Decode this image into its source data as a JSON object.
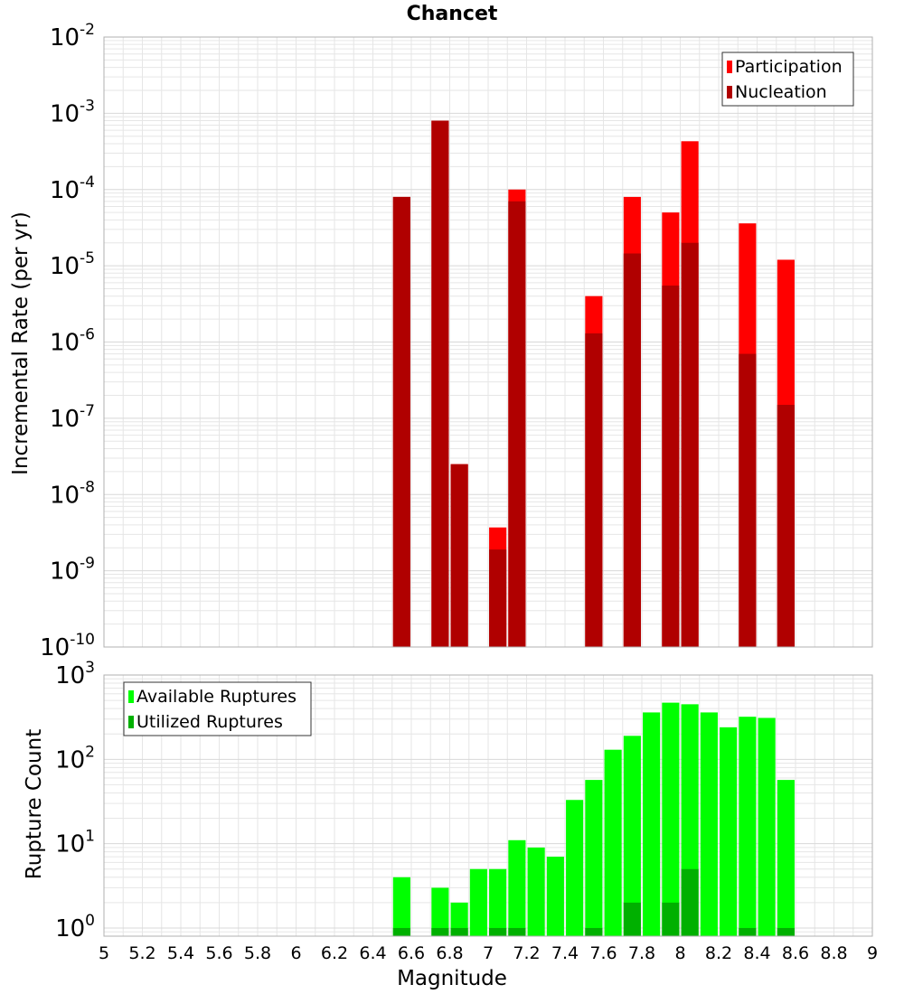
{
  "title": "Chancet",
  "x_axis": {
    "label": "Magnitude",
    "ticks": [
      "5",
      "5.2",
      "5.4",
      "5.6",
      "5.8",
      "6",
      "6.2",
      "6.4",
      "6.6",
      "6.8",
      "7",
      "7.2",
      "7.4",
      "7.6",
      "7.8",
      "8",
      "8.2",
      "8.4",
      "8.6",
      "8.8",
      "9"
    ]
  },
  "colors": {
    "participation": "#ff0000",
    "nucleation": "#b00000",
    "available": "#00ff00",
    "utilized": "#00b000",
    "grid": "#e6e6e6",
    "frame": "#b0b0b0"
  },
  "chart_data": [
    {
      "type": "bar",
      "panel": "top",
      "xlabel": "Magnitude",
      "ylabel": "Incremental Rate (per yr)",
      "xlim": [
        5,
        9
      ],
      "ylim": [
        1e-10,
        0.01
      ],
      "yscale": "log",
      "y_ticks": [
        {
          "base": "10",
          "exp": "-2"
        },
        {
          "base": "10",
          "exp": "-3"
        },
        {
          "base": "10",
          "exp": "-4"
        },
        {
          "base": "10",
          "exp": "-5"
        },
        {
          "base": "10",
          "exp": "-6"
        },
        {
          "base": "10",
          "exp": "-7"
        },
        {
          "base": "10",
          "exp": "-8"
        },
        {
          "base": "10",
          "exp": "-9"
        },
        {
          "base": "10",
          "exp": "-10"
        }
      ],
      "grid": true,
      "legend_position": "top-right",
      "series": [
        {
          "name": "Participation",
          "x": [
            6.55,
            6.75,
            6.85,
            7.05,
            7.15,
            7.55,
            7.75,
            7.95,
            8.05,
            8.35,
            8.55
          ],
          "values": [
            8e-05,
            0.0008,
            2.5e-08,
            3.7e-09,
            0.0001,
            4e-06,
            8e-05,
            5e-05,
            0.00043,
            3.6e-05,
            1.2e-05
          ]
        },
        {
          "name": "Nucleation",
          "x": [
            6.55,
            6.75,
            6.85,
            7.05,
            7.15,
            7.55,
            7.75,
            7.95,
            8.05,
            8.35,
            8.55
          ],
          "values": [
            8e-05,
            0.0008,
            2.5e-08,
            1.9e-09,
            7e-05,
            1.3e-06,
            1.45e-05,
            5.5e-06,
            2e-05,
            7e-07,
            1.5e-07
          ]
        }
      ]
    },
    {
      "type": "bar",
      "panel": "bottom",
      "xlabel": "Magnitude",
      "ylabel": "Rupture Count",
      "xlim": [
        5,
        9
      ],
      "ylim": [
        0.8,
        1000
      ],
      "yscale": "log",
      "y_ticks": [
        {
          "base": "10",
          "exp": "3"
        },
        {
          "base": "10",
          "exp": "2"
        },
        {
          "base": "10",
          "exp": "1"
        },
        {
          "base": "10",
          "exp": "0"
        }
      ],
      "grid": true,
      "legend_position": "top-left",
      "series": [
        {
          "name": "Available Ruptures",
          "x": [
            6.55,
            6.75,
            6.85,
            6.95,
            7.05,
            7.15,
            7.25,
            7.35,
            7.45,
            7.55,
            7.65,
            7.75,
            7.85,
            7.95,
            8.05,
            8.15,
            8.25,
            8.35,
            8.45,
            8.55
          ],
          "values": [
            4,
            3,
            2,
            5,
            5,
            11,
            9,
            7,
            33,
            57,
            130,
            190,
            360,
            470,
            450,
            360,
            240,
            320,
            310,
            57
          ]
        },
        {
          "name": "Utilized Ruptures",
          "x": [
            6.55,
            6.75,
            6.85,
            7.05,
            7.15,
            7.55,
            7.75,
            7.95,
            8.05,
            8.35,
            8.55
          ],
          "values": [
            1,
            1,
            1,
            1,
            1,
            1,
            2,
            2,
            5,
            1,
            1
          ]
        }
      ]
    }
  ]
}
